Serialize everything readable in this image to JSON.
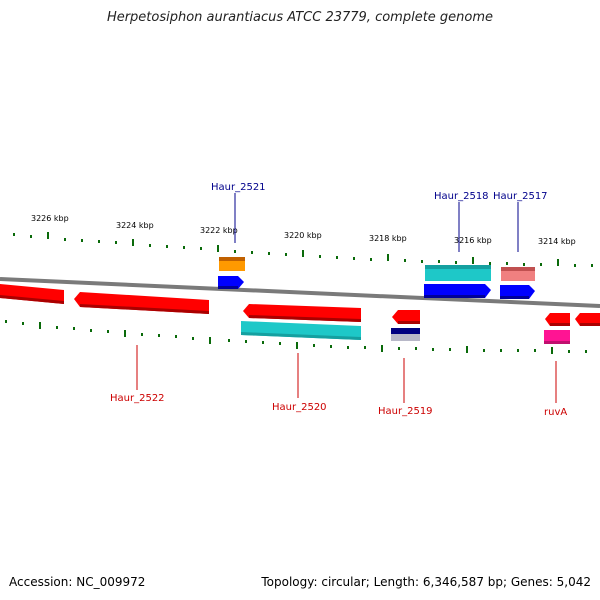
{
  "title": "Herpetosiphon aurantiacus ATCC 23779, complete genome",
  "footer": {
    "accession": "Accession: NC_009972",
    "summary": "Topology: circular; Length: 6,346,587 bp; Genes: 5,042"
  },
  "scale_labels": [
    "3226 kbp",
    "3224 kbp",
    "3222 kbp",
    "3220 kbp",
    "3218 kbp",
    "3216 kbp",
    "3214 kbp"
  ],
  "gene_labels_top": [
    "Haur_2521",
    "Haur_2518",
    "Haur_2517"
  ],
  "gene_labels_bottom": [
    "Haur_2522",
    "Haur_2520",
    "Haur_2519",
    "ruvA"
  ],
  "colors": {
    "gene_red": "#ff0000",
    "cds_cyan": "#1ec8c8",
    "blue": "#0000ff",
    "orange": "#ff9900",
    "salmon": "#f08080",
    "navy": "#000080",
    "magenta": "#ff1493",
    "tick_green": "#0a6a0a",
    "label_top": "#00008b",
    "label_bottom": "#cc0000",
    "backbone": "#808080"
  }
}
